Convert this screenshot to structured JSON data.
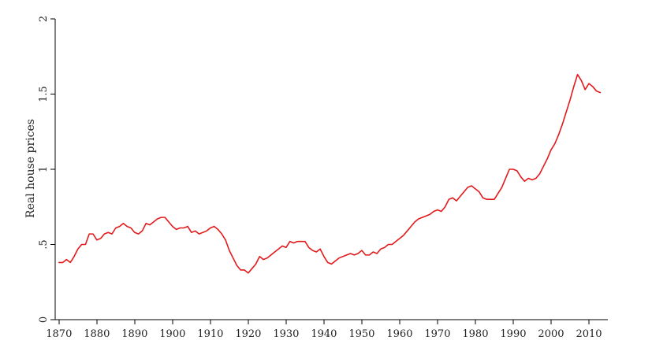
{
  "chart_data": {
    "type": "line",
    "title": "",
    "xlabel": "",
    "ylabel": "Real house prices",
    "xlim": [
      1869,
      2015
    ],
    "ylim": [
      0,
      2
    ],
    "grid": false,
    "legend": "none",
    "x_ticks": [
      1870,
      1880,
      1890,
      1900,
      1910,
      1920,
      1930,
      1940,
      1950,
      1960,
      1970,
      1980,
      1990,
      2000,
      2010
    ],
    "x_tick_labels": [
      "1870",
      "1880",
      "1890",
      "1900",
      "1910",
      "1920",
      "1930",
      "1940",
      "1950",
      "1960",
      "1970",
      "1980",
      "1990",
      "2000",
      "2010"
    ],
    "y_ticks": [
      0,
      0.5,
      1,
      1.5,
      2
    ],
    "y_tick_labels": [
      "0",
      ".5",
      "1",
      "1.5",
      "2"
    ],
    "series": [
      {
        "color": "#e31a1c",
        "x": [
          1870,
          1871,
          1872,
          1873,
          1874,
          1875,
          1876,
          1877,
          1878,
          1879,
          1880,
          1881,
          1882,
          1883,
          1884,
          1885,
          1886,
          1887,
          1888,
          1889,
          1890,
          1891,
          1892,
          1893,
          1894,
          1895,
          1896,
          1897,
          1898,
          1899,
          1900,
          1901,
          1902,
          1903,
          1904,
          1905,
          1906,
          1907,
          1908,
          1909,
          1910,
          1911,
          1912,
          1913,
          1914,
          1915,
          1916,
          1917,
          1918,
          1919,
          1920,
          1921,
          1922,
          1923,
          1924,
          1925,
          1926,
          1927,
          1928,
          1929,
          1930,
          1931,
          1932,
          1933,
          1934,
          1935,
          1936,
          1937,
          1938,
          1939,
          1940,
          1941,
          1942,
          1943,
          1944,
          1945,
          1946,
          1947,
          1948,
          1949,
          1950,
          1951,
          1952,
          1953,
          1954,
          1955,
          1956,
          1957,
          1958,
          1959,
          1960,
          1961,
          1962,
          1963,
          1964,
          1965,
          1966,
          1967,
          1968,
          1969,
          1970,
          1971,
          1972,
          1973,
          1974,
          1975,
          1976,
          1977,
          1978,
          1979,
          1980,
          1981,
          1982,
          1983,
          1984,
          1985,
          1986,
          1987,
          1988,
          1989,
          1990,
          1991,
          1992,
          1993,
          1994,
          1995,
          1996,
          1997,
          1998,
          1999,
          2000,
          2001,
          2002,
          2003,
          2004,
          2005,
          2006,
          2007,
          2008,
          2009,
          2010,
          2011,
          2012,
          2013
        ],
        "values": [
          0.38,
          0.38,
          0.4,
          0.38,
          0.42,
          0.47,
          0.5,
          0.5,
          0.57,
          0.57,
          0.53,
          0.54,
          0.57,
          0.58,
          0.57,
          0.61,
          0.62,
          0.64,
          0.62,
          0.61,
          0.58,
          0.57,
          0.59,
          0.64,
          0.63,
          0.65,
          0.67,
          0.68,
          0.68,
          0.65,
          0.62,
          0.6,
          0.61,
          0.61,
          0.62,
          0.58,
          0.59,
          0.57,
          0.58,
          0.59,
          0.61,
          0.62,
          0.6,
          0.57,
          0.53,
          0.46,
          0.41,
          0.36,
          0.33,
          0.33,
          0.31,
          0.34,
          0.37,
          0.42,
          0.4,
          0.41,
          0.43,
          0.45,
          0.47,
          0.49,
          0.48,
          0.52,
          0.51,
          0.52,
          0.52,
          0.52,
          0.48,
          0.46,
          0.45,
          0.47,
          0.42,
          0.38,
          0.37,
          0.39,
          0.41,
          0.42,
          0.43,
          0.44,
          0.43,
          0.44,
          0.46,
          0.43,
          0.43,
          0.45,
          0.44,
          0.47,
          0.48,
          0.5,
          0.5,
          0.52,
          0.54,
          0.56,
          0.59,
          0.62,
          0.65,
          0.67,
          0.68,
          0.69,
          0.7,
          0.72,
          0.73,
          0.72,
          0.75,
          0.8,
          0.81,
          0.79,
          0.82,
          0.85,
          0.88,
          0.89,
          0.87,
          0.85,
          0.81,
          0.8,
          0.8,
          0.8,
          0.84,
          0.88,
          0.94,
          1.0,
          1.0,
          0.99,
          0.95,
          0.92,
          0.94,
          0.93,
          0.94,
          0.97,
          1.02,
          1.07,
          1.13,
          1.17,
          1.23,
          1.3,
          1.38,
          1.46,
          1.55,
          1.63,
          1.59,
          1.53,
          1.57,
          1.55,
          1.52,
          1.51
        ]
      }
    ]
  }
}
